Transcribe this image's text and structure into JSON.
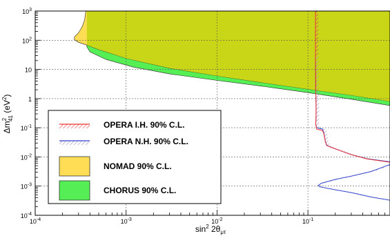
{
  "chart_data": {
    "type": "area",
    "xlabel": "sin² 2θ_μτ",
    "ylabel": "Δm²₄₁ (eV²)",
    "x_scale": "log",
    "y_scale": "log",
    "xlim": [
      0.0001,
      0.8
    ],
    "ylim": [
      0.0001,
      1000
    ],
    "grid": true,
    "legend_position": "lower-left",
    "x_ticks": [
      {
        "value": 0.0001,
        "base": "10",
        "exp": "-4"
      },
      {
        "value": 0.001,
        "base": "10",
        "exp": "-3"
      },
      {
        "value": 0.01,
        "base": "10",
        "exp": "-2"
      },
      {
        "value": 0.1,
        "base": "10",
        "exp": "-1"
      }
    ],
    "y_ticks": [
      {
        "value": 0.0001,
        "base": "10",
        "exp": "-4"
      },
      {
        "value": 0.001,
        "base": "10",
        "exp": "-3"
      },
      {
        "value": 0.01,
        "base": "10",
        "exp": "-2"
      },
      {
        "value": 0.1,
        "base": "10",
        "exp": "-1"
      },
      {
        "value": 1,
        "base": "1",
        "exp": ""
      },
      {
        "value": 10,
        "base": "10",
        "exp": ""
      },
      {
        "value": 100,
        "base": "10",
        "exp": "2"
      },
      {
        "value": 1000,
        "base": "10",
        "exp": "3"
      }
    ],
    "series": [
      {
        "name": "CHORUS 90% C.L.",
        "kind": "filled-region",
        "color": "#55ee55",
        "boundary": [
          [
            0.00037,
            1000
          ],
          [
            0.00037,
            60
          ],
          [
            0.0004,
            40
          ],
          [
            0.0006,
            22
          ],
          [
            0.0012,
            12
          ],
          [
            0.003,
            7
          ],
          [
            0.01,
            4.2
          ],
          [
            0.03,
            2.7
          ],
          [
            0.1,
            1.6
          ],
          [
            0.3,
            0.95
          ],
          [
            0.8,
            0.58
          ],
          [
            0.8,
            1000
          ]
        ]
      },
      {
        "name": "NOMAD 90% C.L.",
        "kind": "filled-region",
        "color": "#ffdd55",
        "boundary": [
          [
            0.00036,
            1000
          ],
          [
            0.00035,
            500
          ],
          [
            0.00033,
            300
          ],
          [
            0.0003,
            180
          ],
          [
            0.00027,
            130
          ],
          [
            0.00027,
            105
          ],
          [
            0.0003,
            85
          ],
          [
            0.00036,
            70
          ],
          [
            0.0005,
            48
          ],
          [
            0.001,
            24
          ],
          [
            0.003,
            11
          ],
          [
            0.01,
            6
          ],
          [
            0.03,
            3.6
          ],
          [
            0.1,
            2.1
          ],
          [
            0.3,
            1.3
          ],
          [
            0.8,
            0.8
          ],
          [
            0.8,
            1000
          ]
        ]
      },
      {
        "name": "OPERA I.H. 90% C.L.",
        "kind": "exclusion-contour",
        "color": "#ee3333",
        "points": [
          [
            0.121,
            1000
          ],
          [
            0.121,
            30
          ],
          [
            0.122,
            2
          ],
          [
            0.123,
            0.6
          ],
          [
            0.123,
            0.25
          ],
          [
            0.122,
            0.13
          ],
          [
            0.125,
            0.09
          ],
          [
            0.135,
            0.085
          ],
          [
            0.145,
            0.08
          ],
          [
            0.15,
            0.06
          ],
          [
            0.155,
            0.035
          ],
          [
            0.16,
            0.025
          ],
          [
            0.175,
            0.022
          ],
          [
            0.22,
            0.017
          ],
          [
            0.3,
            0.012
          ],
          [
            0.45,
            0.0085
          ],
          [
            0.8,
            0.0066
          ]
        ]
      },
      {
        "name": "OPERA N.H. 90% C.L.",
        "kind": "exclusion-contour",
        "color": "#3344cc",
        "points": [
          [
            0.121,
            1000
          ],
          [
            0.121,
            30
          ],
          [
            0.122,
            2
          ],
          [
            0.123,
            0.6
          ],
          [
            0.123,
            0.25
          ],
          [
            0.122,
            0.13
          ],
          [
            0.125,
            0.1
          ],
          [
            0.135,
            0.095
          ],
          [
            0.145,
            0.09
          ],
          [
            0.15,
            0.065
          ],
          [
            0.155,
            0.037
          ],
          [
            0.16,
            0.026
          ],
          [
            0.175,
            0.022
          ],
          [
            0.22,
            0.017
          ],
          [
            0.3,
            0.012
          ],
          [
            0.45,
            0.0087
          ],
          [
            0.8,
            0.0068
          ]
        ],
        "extra_points": [
          [
            0.8,
            0.0055
          ],
          [
            0.5,
            0.0032
          ],
          [
            0.3,
            0.0022
          ],
          [
            0.2,
            0.0017
          ],
          [
            0.14,
            0.00125
          ],
          [
            0.13,
            0.00105
          ],
          [
            0.135,
            0.00095
          ],
          [
            0.2,
            0.00075
          ],
          [
            0.3,
            0.0006
          ],
          [
            0.5,
            0.00042
          ],
          [
            0.8,
            0.00033
          ]
        ]
      }
    ]
  },
  "legend": {
    "items": [
      {
        "label": "OPERA I.H. 90% C.L.",
        "swatch": "hatch",
        "color": "#ee3333"
      },
      {
        "label": "OPERA N.H. 90% C.L.",
        "swatch": "hatch",
        "color": "#3344cc"
      },
      {
        "label": "NOMAD 90% C.L.",
        "swatch": "fill",
        "color": "#ffdd55"
      },
      {
        "label": "CHORUS 90% C.L.",
        "swatch": "fill",
        "color": "#55ee55"
      }
    ]
  },
  "colors": {
    "overlap": "#c8d617",
    "grid": "#555555",
    "hatch": "#a08cc8"
  }
}
